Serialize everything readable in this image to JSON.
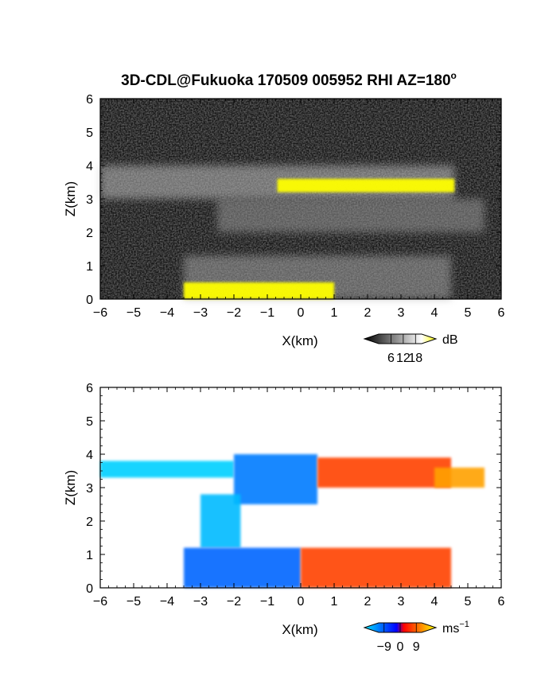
{
  "chart_data": [
    {
      "type": "heatmap",
      "title": "3D-CDL@Fukuoka 170509 005952 RHI AZ=180",
      "title_superscript": "o",
      "xlabel": "X(km)",
      "ylabel": "Z(km)",
      "xlim": [
        -6,
        6
      ],
      "ylim": [
        0,
        6
      ],
      "xticks": [
        -6,
        -5,
        -4,
        -3,
        -2,
        -1,
        0,
        1,
        2,
        3,
        4,
        5,
        6
      ],
      "yticks": [
        0,
        1,
        2,
        3,
        4,
        5,
        6
      ],
      "background": "noise",
      "colorbar": {
        "unit": "dB",
        "ticks": [
          6,
          12,
          18
        ],
        "range": [
          0,
          21
        ],
        "colors": [
          "#000000",
          "#ffffff",
          "#ffff00"
        ]
      },
      "regions": [
        {
          "name": "upper echo layer",
          "x": [
            -6.0,
            4.6
          ],
          "z": [
            3.0,
            4.0
          ],
          "intensity": 12
        },
        {
          "name": "mid layer",
          "x": [
            -2.5,
            5.5
          ],
          "z": [
            2.0,
            3.0
          ],
          "intensity": 9
        },
        {
          "name": "low echo",
          "x": [
            -3.5,
            4.5
          ],
          "z": [
            0.0,
            1.3
          ],
          "intensity": 10
        },
        {
          "name": "strong layer",
          "x": [
            -0.7,
            4.6
          ],
          "z": [
            3.2,
            3.6
          ],
          "intensity": 19
        },
        {
          "name": "ground clutter",
          "x": [
            -3.5,
            1.0
          ],
          "z": [
            0.0,
            0.5
          ],
          "intensity": 19
        }
      ]
    },
    {
      "type": "heatmap",
      "title": "",
      "xlabel": "X(km)",
      "ylabel": "Z(km)",
      "xlim": [
        -6,
        6
      ],
      "ylim": [
        0,
        6
      ],
      "xticks": [
        -6,
        -5,
        -4,
        -3,
        -2,
        -1,
        0,
        1,
        2,
        3,
        4,
        5,
        6
      ],
      "yticks": [
        0,
        1,
        2,
        3,
        4,
        5,
        6
      ],
      "background": "none",
      "colorbar": {
        "unit": "ms",
        "unit_superscript": "−1",
        "ticks": [
          "−9",
          "0",
          "9"
        ],
        "range": [
          -12,
          12
        ],
        "colors": [
          "#00e5ff",
          "#0000ff",
          "#ff0000",
          "#ffff00"
        ]
      },
      "regions": [
        {
          "name": "upper layer west",
          "x": [
            -6.0,
            -2.0
          ],
          "z": [
            3.3,
            3.8
          ],
          "velocity": -11
        },
        {
          "name": "upper layer center",
          "x": [
            -2.0,
            0.5
          ],
          "z": [
            2.5,
            4.0
          ],
          "velocity": -7
        },
        {
          "name": "upper layer east",
          "x": [
            0.5,
            4.5
          ],
          "z": [
            3.0,
            3.9
          ],
          "velocity": 4
        },
        {
          "name": "upper layer far east",
          "x": [
            4.0,
            5.5
          ],
          "z": [
            3.0,
            3.6
          ],
          "velocity": 8
        },
        {
          "name": "mid column",
          "x": [
            -3.0,
            -1.8
          ],
          "z": [
            1.2,
            2.8
          ],
          "velocity": -10
        },
        {
          "name": "low layer west",
          "x": [
            -3.5,
            0.0
          ],
          "z": [
            0.0,
            1.2
          ],
          "velocity": -6
        },
        {
          "name": "low layer east",
          "x": [
            0.0,
            4.5
          ],
          "z": [
            0.0,
            1.2
          ],
          "velocity": 4
        }
      ]
    }
  ]
}
